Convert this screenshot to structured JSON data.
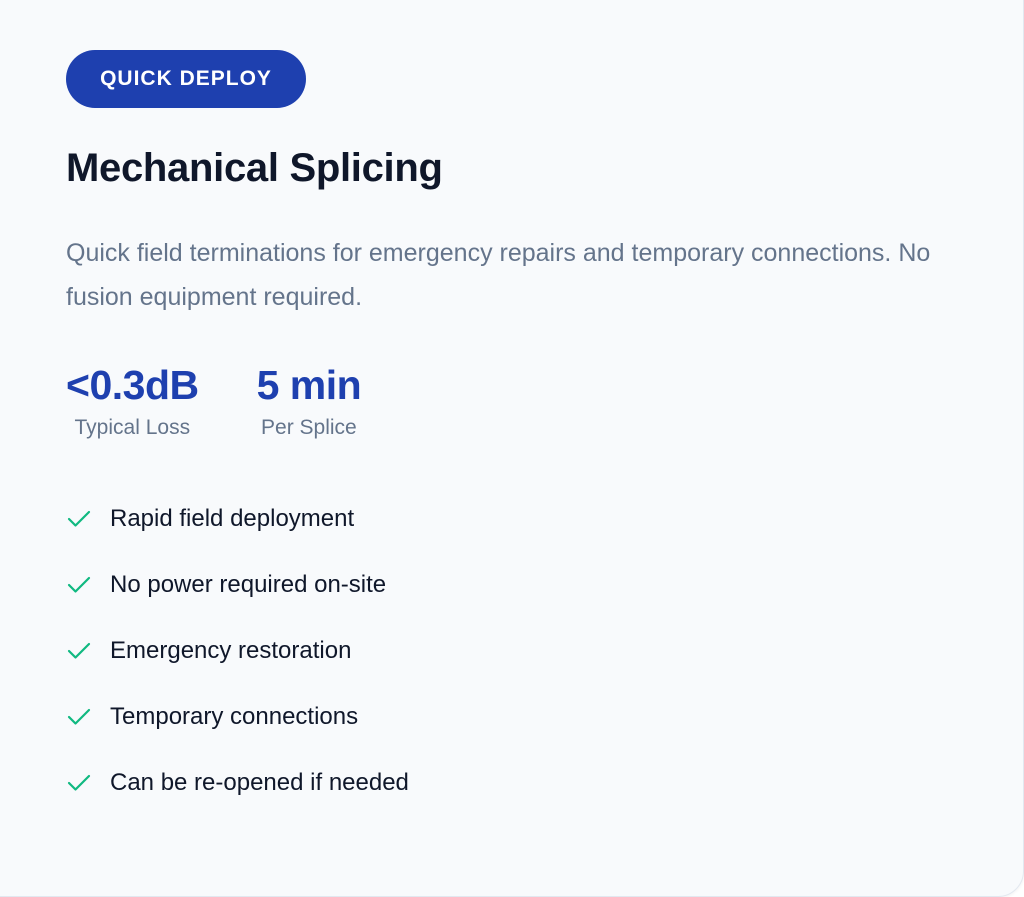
{
  "badge": "QUICK DEPLOY",
  "title": "Mechanical Splicing",
  "description": "Quick field terminations for emergency repairs and temporary connections. No fusion equipment required.",
  "stats": [
    {
      "value": "<0.3dB",
      "label": "Typical Loss"
    },
    {
      "value": "5 min",
      "label": "Per Splice"
    }
  ],
  "features": [
    "Rapid field deployment",
    "No power required on-site",
    "Emergency restoration",
    "Temporary connections",
    "Can be re-opened if needed"
  ],
  "colors": {
    "accent": "#1e40af",
    "check": "#10b981",
    "background": "#f8fafc"
  },
  "icons": {
    "feature": "check-icon"
  }
}
